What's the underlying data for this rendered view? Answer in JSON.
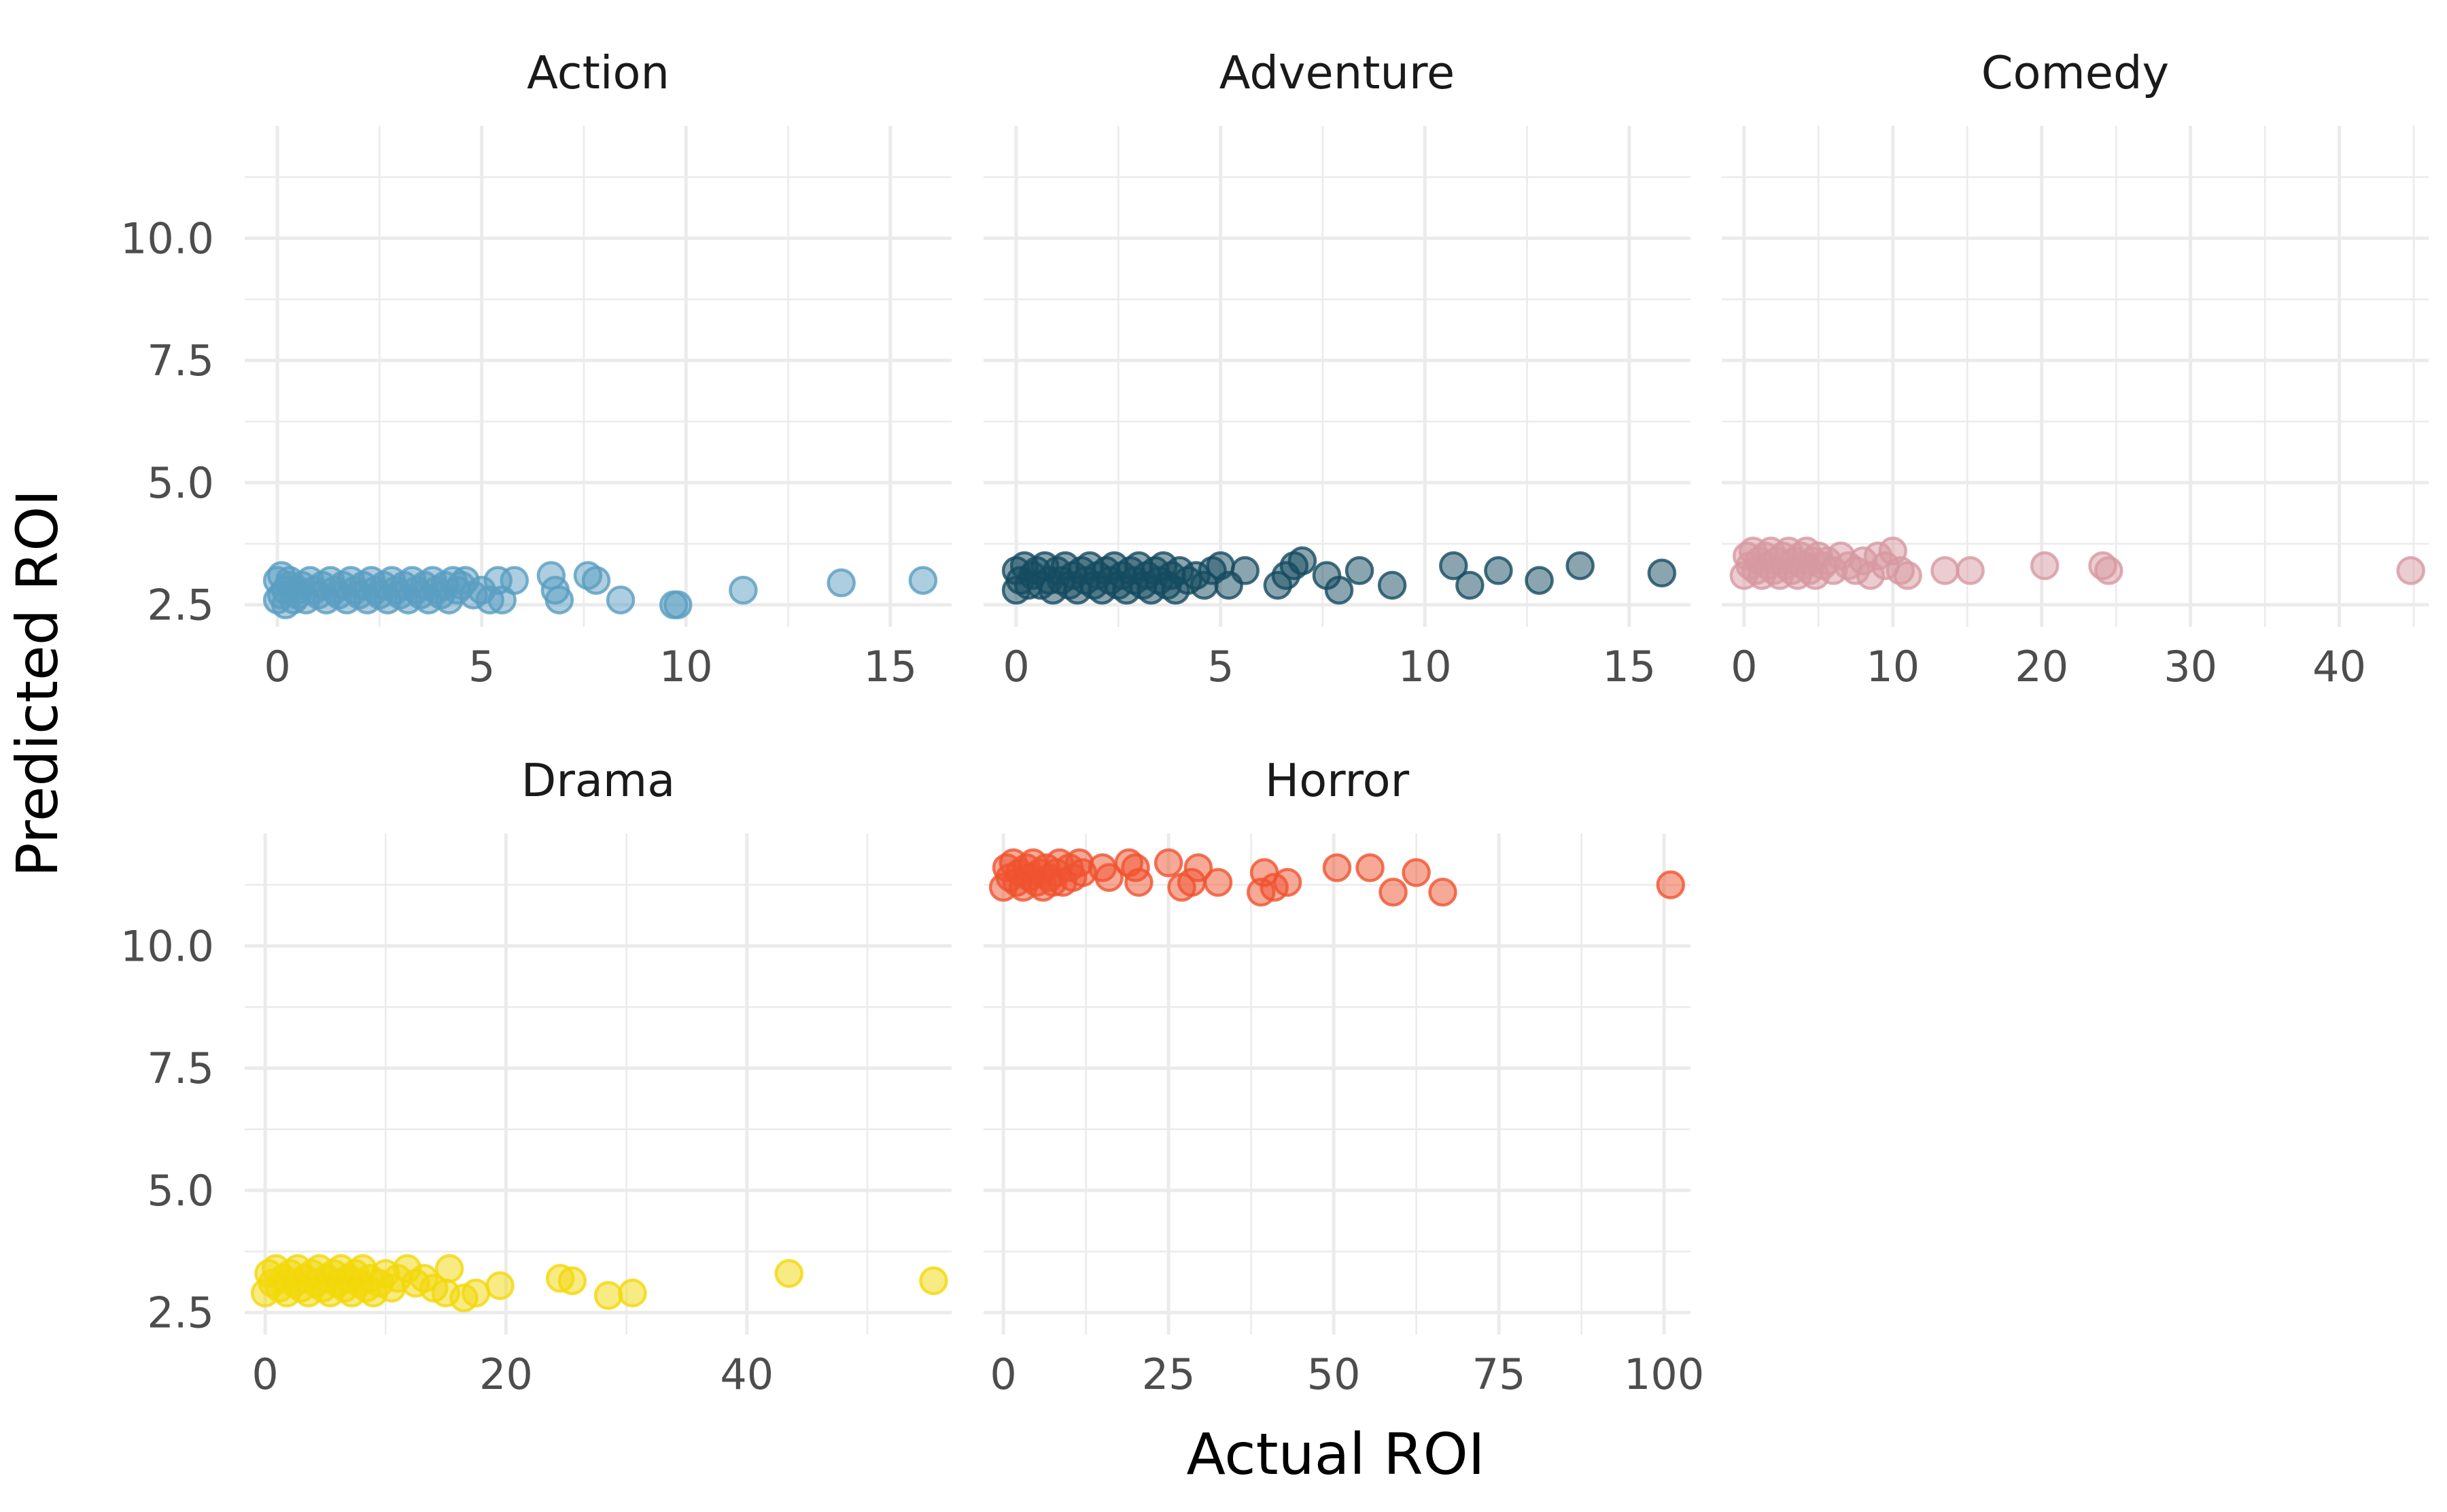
{
  "chart_data": {
    "type": "scatter",
    "xlabel": "Actual ROI",
    "ylabel": "Predicted ROI",
    "y_ticks": [
      "2.5",
      "5.0",
      "7.5",
      "10.0"
    ],
    "ylim": [
      2.05,
      12.3
    ],
    "facets": [
      {
        "title": "Action",
        "color": "#5a9ec1",
        "xlim": [
          -0.8,
          16.5
        ],
        "x_ticks": [
          0,
          5,
          10,
          15
        ],
        "points": [
          [
            0.0,
            2.6
          ],
          [
            0.0,
            3.0
          ],
          [
            0.1,
            2.7
          ],
          [
            0.1,
            3.1
          ],
          [
            0.2,
            2.8
          ],
          [
            0.2,
            2.5
          ],
          [
            0.3,
            2.9
          ],
          [
            0.3,
            3.0
          ],
          [
            0.4,
            2.6
          ],
          [
            0.5,
            2.8
          ],
          [
            0.5,
            2.7
          ],
          [
            0.6,
            2.9
          ],
          [
            0.7,
            2.6
          ],
          [
            0.8,
            3.0
          ],
          [
            0.9,
            2.8
          ],
          [
            1.0,
            2.7
          ],
          [
            1.1,
            2.9
          ],
          [
            1.2,
            2.6
          ],
          [
            1.3,
            3.0
          ],
          [
            1.4,
            2.8
          ],
          [
            1.5,
            2.7
          ],
          [
            1.6,
            2.9
          ],
          [
            1.7,
            2.6
          ],
          [
            1.8,
            3.0
          ],
          [
            1.9,
            2.8
          ],
          [
            2.0,
            2.7
          ],
          [
            2.1,
            2.9
          ],
          [
            2.2,
            2.6
          ],
          [
            2.3,
            3.0
          ],
          [
            2.4,
            2.8
          ],
          [
            2.5,
            2.7
          ],
          [
            2.6,
            2.9
          ],
          [
            2.7,
            2.6
          ],
          [
            2.8,
            3.0
          ],
          [
            2.9,
            2.8
          ],
          [
            3.0,
            2.7
          ],
          [
            3.1,
            2.9
          ],
          [
            3.2,
            2.6
          ],
          [
            3.3,
            3.0
          ],
          [
            3.4,
            2.8
          ],
          [
            3.5,
            2.7
          ],
          [
            3.6,
            2.9
          ],
          [
            3.7,
            2.6
          ],
          [
            3.8,
            3.0
          ],
          [
            3.9,
            2.8
          ],
          [
            4.0,
            2.7
          ],
          [
            4.1,
            2.9
          ],
          [
            4.2,
            2.6
          ],
          [
            4.3,
            3.0
          ],
          [
            4.4,
            2.8
          ],
          [
            4.5,
            2.9
          ],
          [
            4.6,
            3.0
          ],
          [
            4.8,
            2.7
          ],
          [
            5.0,
            2.8
          ],
          [
            5.2,
            2.6
          ],
          [
            5.5,
            2.6
          ],
          [
            5.4,
            3.0
          ],
          [
            5.8,
            3.0
          ],
          [
            6.7,
            3.1
          ],
          [
            6.8,
            2.8
          ],
          [
            6.9,
            2.6
          ],
          [
            7.6,
            3.1
          ],
          [
            7.8,
            3.0
          ],
          [
            8.4,
            2.6
          ],
          [
            9.7,
            2.5
          ],
          [
            9.8,
            2.5
          ],
          [
            11.4,
            2.8
          ],
          [
            13.8,
            2.95
          ],
          [
            15.8,
            3.0
          ]
        ]
      },
      {
        "title": "Adventure",
        "color": "#154b60",
        "xlim": [
          -0.8,
          16.5
        ],
        "x_ticks": [
          0,
          5,
          10,
          15
        ],
        "points": [
          [
            0.0,
            2.8
          ],
          [
            0.0,
            3.2
          ],
          [
            0.1,
            3.0
          ],
          [
            0.2,
            3.3
          ],
          [
            0.3,
            2.9
          ],
          [
            0.4,
            3.1
          ],
          [
            0.5,
            3.2
          ],
          [
            0.6,
            2.9
          ],
          [
            0.7,
            3.3
          ],
          [
            0.8,
            3.0
          ],
          [
            0.9,
            2.8
          ],
          [
            1.0,
            3.2
          ],
          [
            1.1,
            3.0
          ],
          [
            1.2,
            3.3
          ],
          [
            1.3,
            2.9
          ],
          [
            1.4,
            3.1
          ],
          [
            1.5,
            2.8
          ],
          [
            1.6,
            3.2
          ],
          [
            1.7,
            3.0
          ],
          [
            1.8,
            3.3
          ],
          [
            1.9,
            2.9
          ],
          [
            2.0,
            3.1
          ],
          [
            2.1,
            2.8
          ],
          [
            2.2,
            3.2
          ],
          [
            2.3,
            3.0
          ],
          [
            2.4,
            3.3
          ],
          [
            2.5,
            2.9
          ],
          [
            2.6,
            3.1
          ],
          [
            2.7,
            2.8
          ],
          [
            2.8,
            3.2
          ],
          [
            2.9,
            3.0
          ],
          [
            3.0,
            3.3
          ],
          [
            3.1,
            2.9
          ],
          [
            3.2,
            3.1
          ],
          [
            3.3,
            2.8
          ],
          [
            3.4,
            3.2
          ],
          [
            3.5,
            3.0
          ],
          [
            3.6,
            3.3
          ],
          [
            3.7,
            2.9
          ],
          [
            3.8,
            3.1
          ],
          [
            3.9,
            2.8
          ],
          [
            4.0,
            3.2
          ],
          [
            4.2,
            3.0
          ],
          [
            4.4,
            3.1
          ],
          [
            4.6,
            2.9
          ],
          [
            4.8,
            3.2
          ],
          [
            5.0,
            3.3
          ],
          [
            5.2,
            2.9
          ],
          [
            5.6,
            3.2
          ],
          [
            6.4,
            2.9
          ],
          [
            6.6,
            3.1
          ],
          [
            6.8,
            3.3
          ],
          [
            7.0,
            3.4
          ],
          [
            7.6,
            3.1
          ],
          [
            7.9,
            2.8
          ],
          [
            8.4,
            3.2
          ],
          [
            9.2,
            2.9
          ],
          [
            10.7,
            3.3
          ],
          [
            11.1,
            2.9
          ],
          [
            11.8,
            3.2
          ],
          [
            12.8,
            3.0
          ],
          [
            13.8,
            3.3
          ],
          [
            15.8,
            3.15
          ]
        ]
      },
      {
        "title": "Comedy",
        "color": "#d799a1",
        "xlim": [
          -1.5,
          46.0
        ],
        "x_ticks": [
          0,
          10,
          20,
          30,
          40
        ],
        "points": [
          [
            0.0,
            3.1
          ],
          [
            0.2,
            3.5
          ],
          [
            0.4,
            3.3
          ],
          [
            0.6,
            3.6
          ],
          [
            0.8,
            3.2
          ],
          [
            1.0,
            3.4
          ],
          [
            1.2,
            3.1
          ],
          [
            1.4,
            3.5
          ],
          [
            1.6,
            3.3
          ],
          [
            1.8,
            3.6
          ],
          [
            2.0,
            3.2
          ],
          [
            2.2,
            3.4
          ],
          [
            2.4,
            3.1
          ],
          [
            2.6,
            3.5
          ],
          [
            2.8,
            3.3
          ],
          [
            3.0,
            3.6
          ],
          [
            3.2,
            3.2
          ],
          [
            3.4,
            3.4
          ],
          [
            3.6,
            3.1
          ],
          [
            3.8,
            3.5
          ],
          [
            4.0,
            3.3
          ],
          [
            4.2,
            3.6
          ],
          [
            4.4,
            3.2
          ],
          [
            4.6,
            3.4
          ],
          [
            4.8,
            3.1
          ],
          [
            5.0,
            3.5
          ],
          [
            5.3,
            3.3
          ],
          [
            5.6,
            3.4
          ],
          [
            6.0,
            3.2
          ],
          [
            6.5,
            3.5
          ],
          [
            7.0,
            3.3
          ],
          [
            7.5,
            3.2
          ],
          [
            8.0,
            3.4
          ],
          [
            8.5,
            3.1
          ],
          [
            9.0,
            3.5
          ],
          [
            9.5,
            3.3
          ],
          [
            10.0,
            3.6
          ],
          [
            10.5,
            3.2
          ],
          [
            11.0,
            3.1
          ],
          [
            13.5,
            3.2
          ],
          [
            15.2,
            3.2
          ],
          [
            20.2,
            3.3
          ],
          [
            24.1,
            3.3
          ],
          [
            24.5,
            3.2
          ],
          [
            44.8,
            3.2
          ]
        ]
      },
      {
        "title": "Drama",
        "color": "#f2d80a",
        "xlim": [
          -1.7,
          57.0
        ],
        "x_ticks": [
          0,
          20,
          40
        ],
        "points": [
          [
            0.0,
            2.9
          ],
          [
            0.3,
            3.3
          ],
          [
            0.6,
            3.1
          ],
          [
            0.9,
            3.4
          ],
          [
            1.2,
            3.0
          ],
          [
            1.5,
            3.2
          ],
          [
            1.8,
            2.9
          ],
          [
            2.1,
            3.3
          ],
          [
            2.4,
            3.1
          ],
          [
            2.7,
            3.4
          ],
          [
            3.0,
            3.0
          ],
          [
            3.3,
            3.2
          ],
          [
            3.6,
            2.9
          ],
          [
            3.9,
            3.3
          ],
          [
            4.2,
            3.1
          ],
          [
            4.5,
            3.4
          ],
          [
            4.8,
            3.0
          ],
          [
            5.1,
            3.2
          ],
          [
            5.4,
            2.9
          ],
          [
            5.7,
            3.3
          ],
          [
            6.0,
            3.1
          ],
          [
            6.3,
            3.4
          ],
          [
            6.6,
            3.0
          ],
          [
            6.9,
            3.2
          ],
          [
            7.2,
            2.9
          ],
          [
            7.5,
            3.3
          ],
          [
            7.8,
            3.1
          ],
          [
            8.1,
            3.4
          ],
          [
            8.4,
            3.0
          ],
          [
            8.7,
            3.2
          ],
          [
            9.0,
            2.9
          ],
          [
            9.5,
            3.1
          ],
          [
            10.0,
            3.3
          ],
          [
            10.5,
            3.0
          ],
          [
            11.0,
            3.2
          ],
          [
            11.8,
            3.4
          ],
          [
            12.5,
            3.1
          ],
          [
            13.2,
            3.2
          ],
          [
            14.0,
            3.0
          ],
          [
            15.0,
            2.9
          ],
          [
            15.3,
            3.4
          ],
          [
            16.5,
            2.8
          ],
          [
            17.5,
            2.9
          ],
          [
            19.5,
            3.05
          ],
          [
            24.5,
            3.2
          ],
          [
            25.5,
            3.15
          ],
          [
            28.5,
            2.85
          ],
          [
            30.5,
            2.9
          ],
          [
            43.5,
            3.3
          ],
          [
            55.5,
            3.15
          ]
        ]
      },
      {
        "title": "Horror",
        "color": "#f0532f",
        "xlim": [
          -3.0,
          104.0
        ],
        "x_ticks": [
          0,
          25,
          50,
          75,
          100
        ],
        "points": [
          [
            0.0,
            11.2
          ],
          [
            0.5,
            11.6
          ],
          [
            1.0,
            11.4
          ],
          [
            1.5,
            11.7
          ],
          [
            2.0,
            11.3
          ],
          [
            2.5,
            11.5
          ],
          [
            3.0,
            11.2
          ],
          [
            3.5,
            11.6
          ],
          [
            4.0,
            11.4
          ],
          [
            4.5,
            11.7
          ],
          [
            5.0,
            11.3
          ],
          [
            5.5,
            11.5
          ],
          [
            6.0,
            11.2
          ],
          [
            6.5,
            11.6
          ],
          [
            7.0,
            11.4
          ],
          [
            7.5,
            11.3
          ],
          [
            8.0,
            11.5
          ],
          [
            8.5,
            11.7
          ],
          [
            9.0,
            11.3
          ],
          [
            10.0,
            11.6
          ],
          [
            10.5,
            11.4
          ],
          [
            11.5,
            11.7
          ],
          [
            12.0,
            11.5
          ],
          [
            15.0,
            11.6
          ],
          [
            16.0,
            11.4
          ],
          [
            19.0,
            11.7
          ],
          [
            20.0,
            11.6
          ],
          [
            20.5,
            11.3
          ],
          [
            25.0,
            11.7
          ],
          [
            27.0,
            11.2
          ],
          [
            28.5,
            11.3
          ],
          [
            29.5,
            11.6
          ],
          [
            32.5,
            11.3
          ],
          [
            39.0,
            11.1
          ],
          [
            39.5,
            11.5
          ],
          [
            41.0,
            11.2
          ],
          [
            43.0,
            11.3
          ],
          [
            50.5,
            11.6
          ],
          [
            55.5,
            11.6
          ],
          [
            59.0,
            11.1
          ],
          [
            62.5,
            11.5
          ],
          [
            66.5,
            11.1
          ],
          [
            101.0,
            11.25
          ]
        ]
      }
    ]
  }
}
